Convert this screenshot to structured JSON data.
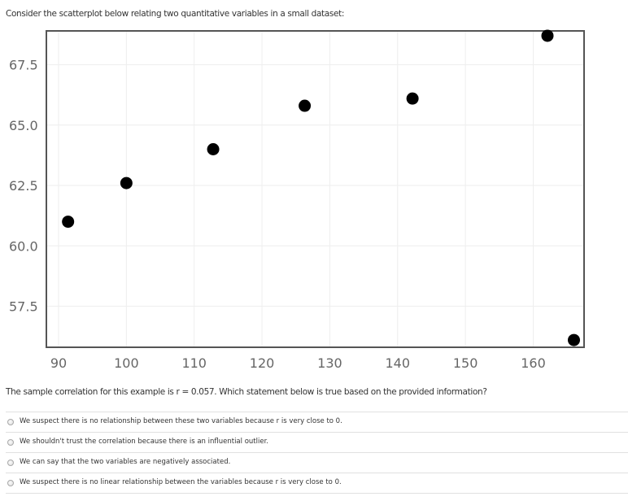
{
  "prompt": "Consider the scatterplot below relating two quantitative variables in a small dataset:",
  "chart_data": {
    "type": "scatter",
    "title": "",
    "xlabel": "",
    "ylabel": "",
    "xlim": [
      88.2,
      167.5
    ],
    "ylim": [
      55.8,
      68.9
    ],
    "xticks": [
      90,
      100,
      110,
      120,
      130,
      140,
      150,
      160
    ],
    "yticks": [
      57.5,
      60.0,
      62.5,
      65.0,
      67.5
    ],
    "grid": true,
    "points": [
      {
        "x": 91.4,
        "y": 61.0
      },
      {
        "x": 100.0,
        "y": 62.6
      },
      {
        "x": 112.8,
        "y": 64.0
      },
      {
        "x": 126.3,
        "y": 65.8
      },
      {
        "x": 142.2,
        "y": 66.1
      },
      {
        "x": 162.1,
        "y": 68.7
      },
      {
        "x": 166.0,
        "y": 56.1
      }
    ],
    "colors": {
      "point": "#000000",
      "grid": "#eeeeee",
      "frame": "#555555",
      "tick_label": "#666666"
    }
  },
  "question": "The sample correlation for this example is r = 0.057. Which statement below is true based on the provided information?",
  "options": [
    {
      "label": "We suspect there is no relationship between these two variables because r is very close to 0."
    },
    {
      "label": "We shouldn't trust the correlation because there is an influential outlier."
    },
    {
      "label": "We can say that the two variables are negatively associated."
    },
    {
      "label": "We suspect there is no linear relationship between the variables because r is very close to 0."
    }
  ]
}
